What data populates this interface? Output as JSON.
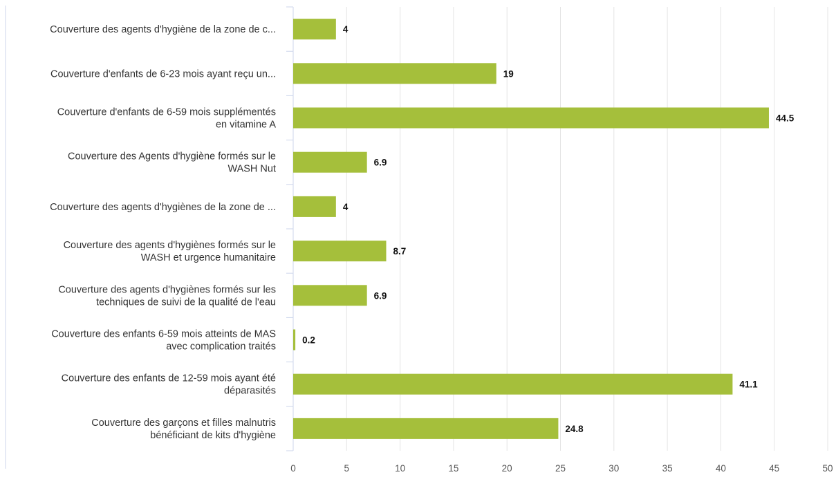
{
  "chart_data": {
    "type": "bar",
    "orientation": "horizontal",
    "title": "",
    "xlabel": "",
    "ylabel": "",
    "xlim": [
      0,
      50
    ],
    "x_ticks": [
      "0",
      "5",
      "10",
      "15",
      "20",
      "25",
      "30",
      "35",
      "40",
      "45",
      "50"
    ],
    "grid": true,
    "bar_color": "#a5bf3b",
    "categories": [
      [
        "Couverture des agents d'hygiène de la zone de c..."
      ],
      [
        "Couverture d'enfants de 6-23 mois ayant reçu un..."
      ],
      [
        "Couverture d'enfants de 6-59 mois supplémentés",
        "en vitamine A"
      ],
      [
        "Couverture des Agents d'hygiène formés sur le",
        "WASH Nut"
      ],
      [
        "Couverture des agents d'hygiènes de la zone de ..."
      ],
      [
        "Couverture des agents d'hygiènes formés sur le",
        "WASH et urgence humanitaire"
      ],
      [
        "Couverture des agents d'hygiènes formés sur les",
        "techniques de suivi de la qualité de l'eau"
      ],
      [
        "Couverture des enfants 6-59 mois atteints de MAS",
        "avec complication traités"
      ],
      [
        "Couverture des enfants de 12-59 mois ayant été",
        "déparasités"
      ],
      [
        "Couverture des garçons et filles malnutris",
        "bénéficiant de kits d'hygiène"
      ]
    ],
    "values": [
      4,
      19,
      44.5,
      6.9,
      4,
      8.7,
      6.9,
      0.2,
      41.1,
      24.8
    ],
    "value_labels": [
      "4",
      "19",
      "44.5",
      "6.9",
      "4",
      "8.7",
      "6.9",
      "0.2",
      "41.1",
      "24.8"
    ]
  }
}
